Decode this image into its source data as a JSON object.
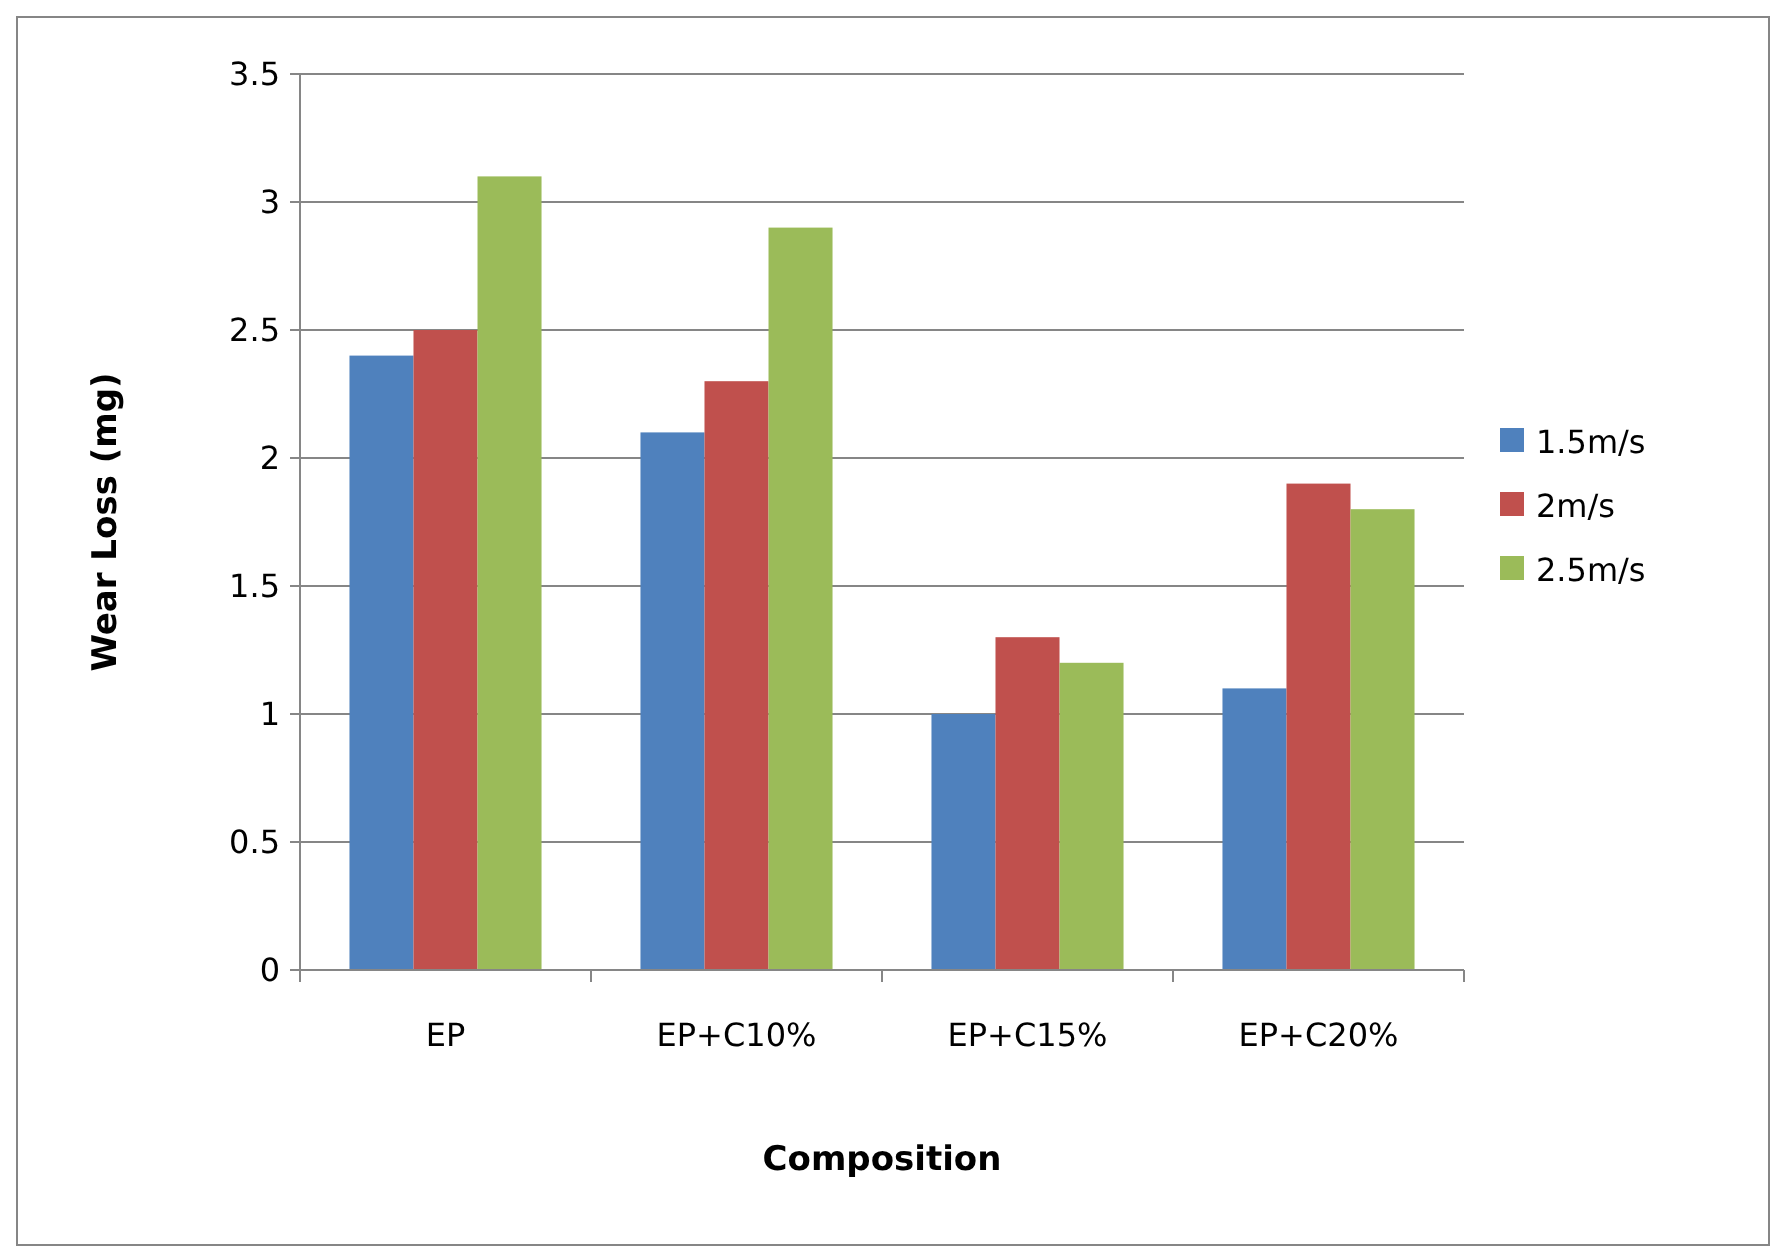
{
  "chart_data": {
    "type": "bar",
    "xlabel": "Composition",
    "ylabel": "Wear Loss (mg)",
    "categories": [
      "EP",
      "EP+C10%",
      "EP+C15%",
      "EP+C20%"
    ],
    "series": [
      {
        "name": "1.5m/s",
        "color": "#4f81bd",
        "values": [
          2.4,
          2.1,
          1.0,
          1.1
        ]
      },
      {
        "name": "2m/s",
        "color": "#c0504d",
        "values": [
          2.5,
          2.3,
          1.3,
          1.9
        ]
      },
      {
        "name": "2.5m/s",
        "color": "#9bbb59",
        "values": [
          3.1,
          2.9,
          1.2,
          1.8
        ]
      }
    ],
    "ylim": [
      0,
      3.5
    ],
    "yticks": [
      0,
      0.5,
      1,
      1.5,
      2,
      2.5,
      3,
      3.5
    ],
    "grid": "y",
    "legend": "right"
  }
}
